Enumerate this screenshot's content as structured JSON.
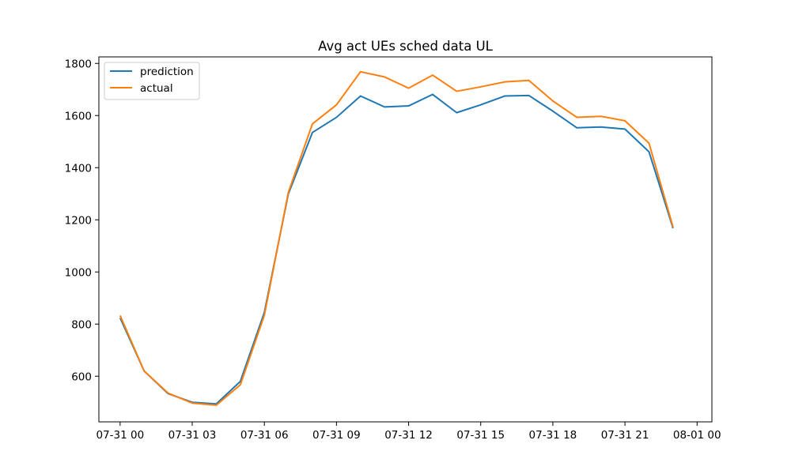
{
  "chart_data": {
    "type": "line",
    "title": "Avg act UEs sched data UL",
    "xlabel": "",
    "ylabel": "",
    "x": [
      "07-31 00:00",
      "07-31 01:00",
      "07-31 02:00",
      "07-31 03:00",
      "07-31 04:00",
      "07-31 05:00",
      "07-31 06:00",
      "07-31 07:00",
      "07-31 08:00",
      "07-31 09:00",
      "07-31 10:00",
      "07-31 11:00",
      "07-31 12:00",
      "07-31 13:00",
      "07-31 14:00",
      "07-31 15:00",
      "07-31 16:00",
      "07-31 17:00",
      "07-31 18:00",
      "07-31 19:00",
      "07-31 20:00",
      "07-31 21:00",
      "07-31 22:00",
      "07-31 23:00"
    ],
    "x_range": [
      "07-30 23:07",
      "08-01 00:37"
    ],
    "x_ticks": [
      "07-31 00",
      "07-31 03",
      "07-31 06",
      "07-31 09",
      "07-31 12",
      "07-31 15",
      "07-31 18",
      "07-31 21",
      "08-01 00"
    ],
    "ylim": [
      425,
      1825
    ],
    "y_ticks": [
      600,
      800,
      1000,
      1200,
      1400,
      1600,
      1800
    ],
    "series": [
      {
        "name": "prediction",
        "color": "#1f77b4",
        "values": [
          824,
          620,
          533,
          500,
          494,
          580,
          845,
          1300,
          1535,
          1593,
          1675,
          1633,
          1637,
          1681,
          1611,
          1641,
          1675,
          1677,
          1617,
          1553,
          1556,
          1548,
          1461,
          1168
        ]
      },
      {
        "name": "actual",
        "color": "#ff7f0e",
        "values": [
          833,
          620,
          535,
          497,
          489,
          567,
          834,
          1306,
          1568,
          1641,
          1768,
          1748,
          1705,
          1755,
          1693,
          1710,
          1729,
          1735,
          1656,
          1593,
          1597,
          1580,
          1494,
          1172
        ]
      }
    ],
    "legend": {
      "position": "top-left"
    },
    "grid": false
  }
}
